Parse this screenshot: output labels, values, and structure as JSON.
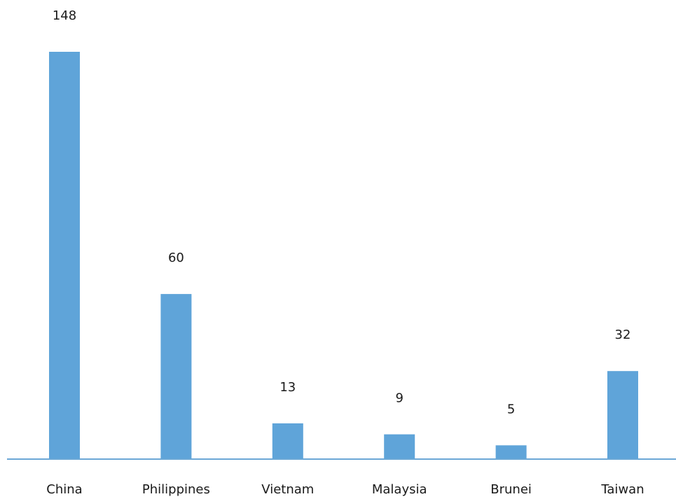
{
  "chart_data": {
    "type": "bar",
    "title": "",
    "xlabel": "",
    "ylabel": "",
    "categories": [
      "China",
      "Philippines",
      "Vietnam",
      "Malaysia",
      "Brunei",
      "Taiwan"
    ],
    "values": [
      148,
      60,
      13,
      9,
      5,
      32
    ],
    "data_labels": [
      "148",
      "60",
      "13",
      "9",
      "5",
      "32"
    ],
    "value_axis_visible": false,
    "grid": false,
    "legend": "none",
    "colors": {
      "bar": "#5FA4D9",
      "axis": "#6BA7D6",
      "text": "#1a1a1a"
    }
  }
}
